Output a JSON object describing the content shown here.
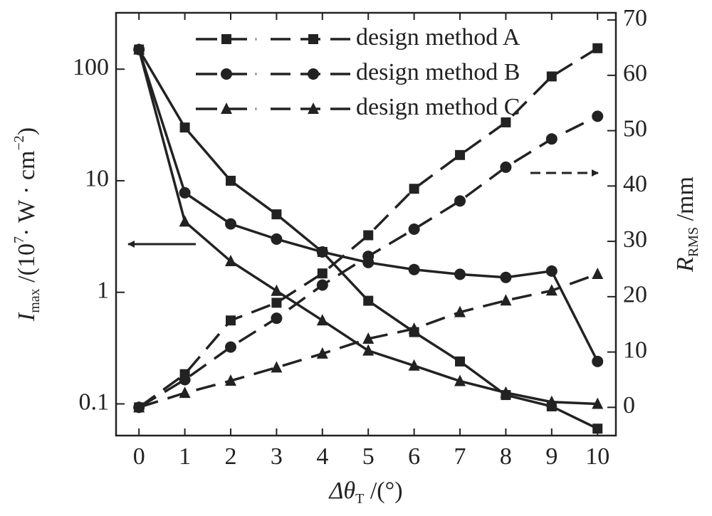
{
  "chart_data": {
    "type": "line",
    "x_label": {
      "symbol": "Δθ",
      "subscript": "T",
      "unit": " /(°)"
    },
    "y_label": {
      "symbol": "I",
      "subscript": "max",
      "unit_prefix": " /(10",
      "superscript": "7",
      "unit_mid": "· W · cm",
      "superscript2": "−2",
      "unit_suffix": ")"
    },
    "y2_label": {
      "symbol": "R",
      "subscript": "RMS",
      "unit": " /mm"
    },
    "x": [
      0,
      1,
      2,
      3,
      4,
      5,
      6,
      7,
      8,
      9,
      10
    ],
    "xlim": [
      -0.5,
      10.4
    ],
    "xticks": [
      0,
      1,
      2,
      3,
      4,
      5,
      6,
      7,
      8,
      9,
      10
    ],
    "ylim": [
      0.052,
      320
    ],
    "yticks": [
      0.1,
      1,
      10,
      100
    ],
    "ylog": true,
    "y2lim": [
      -5.1,
      71.3
    ],
    "y2ticks": [
      0,
      10,
      20,
      30,
      40,
      50,
      60,
      70
    ],
    "legend": "upper right",
    "series": [
      {
        "name": "design method A",
        "marker": "square",
        "color": "#222222",
        "values": [
          150,
          30,
          10,
          5,
          2.3,
          0.84,
          0.44,
          0.24,
          0.12,
          0.095,
          0.06
        ]
      },
      {
        "name": "design method B",
        "marker": "circle",
        "color": "#222222",
        "values": [
          150,
          7.8,
          4.1,
          3.0,
          2.3,
          1.85,
          1.6,
          1.45,
          1.36,
          1.55,
          0.24
        ]
      },
      {
        "name": "design method C",
        "marker": "triangle",
        "color": "#222222",
        "values": [
          150,
          4.3,
          1.9,
          1.03,
          0.56,
          0.3,
          0.22,
          0.16,
          0.126,
          0.104,
          0.1
        ]
      },
      {
        "axis": "y2",
        "marker": "square",
        "color": "#222222",
        "values": [
          0,
          6.0,
          15.7,
          18.9,
          24.2,
          31.1,
          39.5,
          45.6,
          51.5,
          59.8,
          64.9
        ]
      },
      {
        "axis": "y2",
        "marker": "circle",
        "color": "#222222",
        "values": [
          0,
          5.0,
          10.9,
          16.1,
          22.1,
          27.3,
          32.2,
          37.3,
          43.4,
          48.5,
          52.6
        ]
      },
      {
        "axis": "y2",
        "marker": "triangle",
        "color": "#222222",
        "values": [
          0,
          2.6,
          4.8,
          7.2,
          9.7,
          12.4,
          14.2,
          17.2,
          19.3,
          21.1,
          24.1
        ]
      }
    ]
  }
}
